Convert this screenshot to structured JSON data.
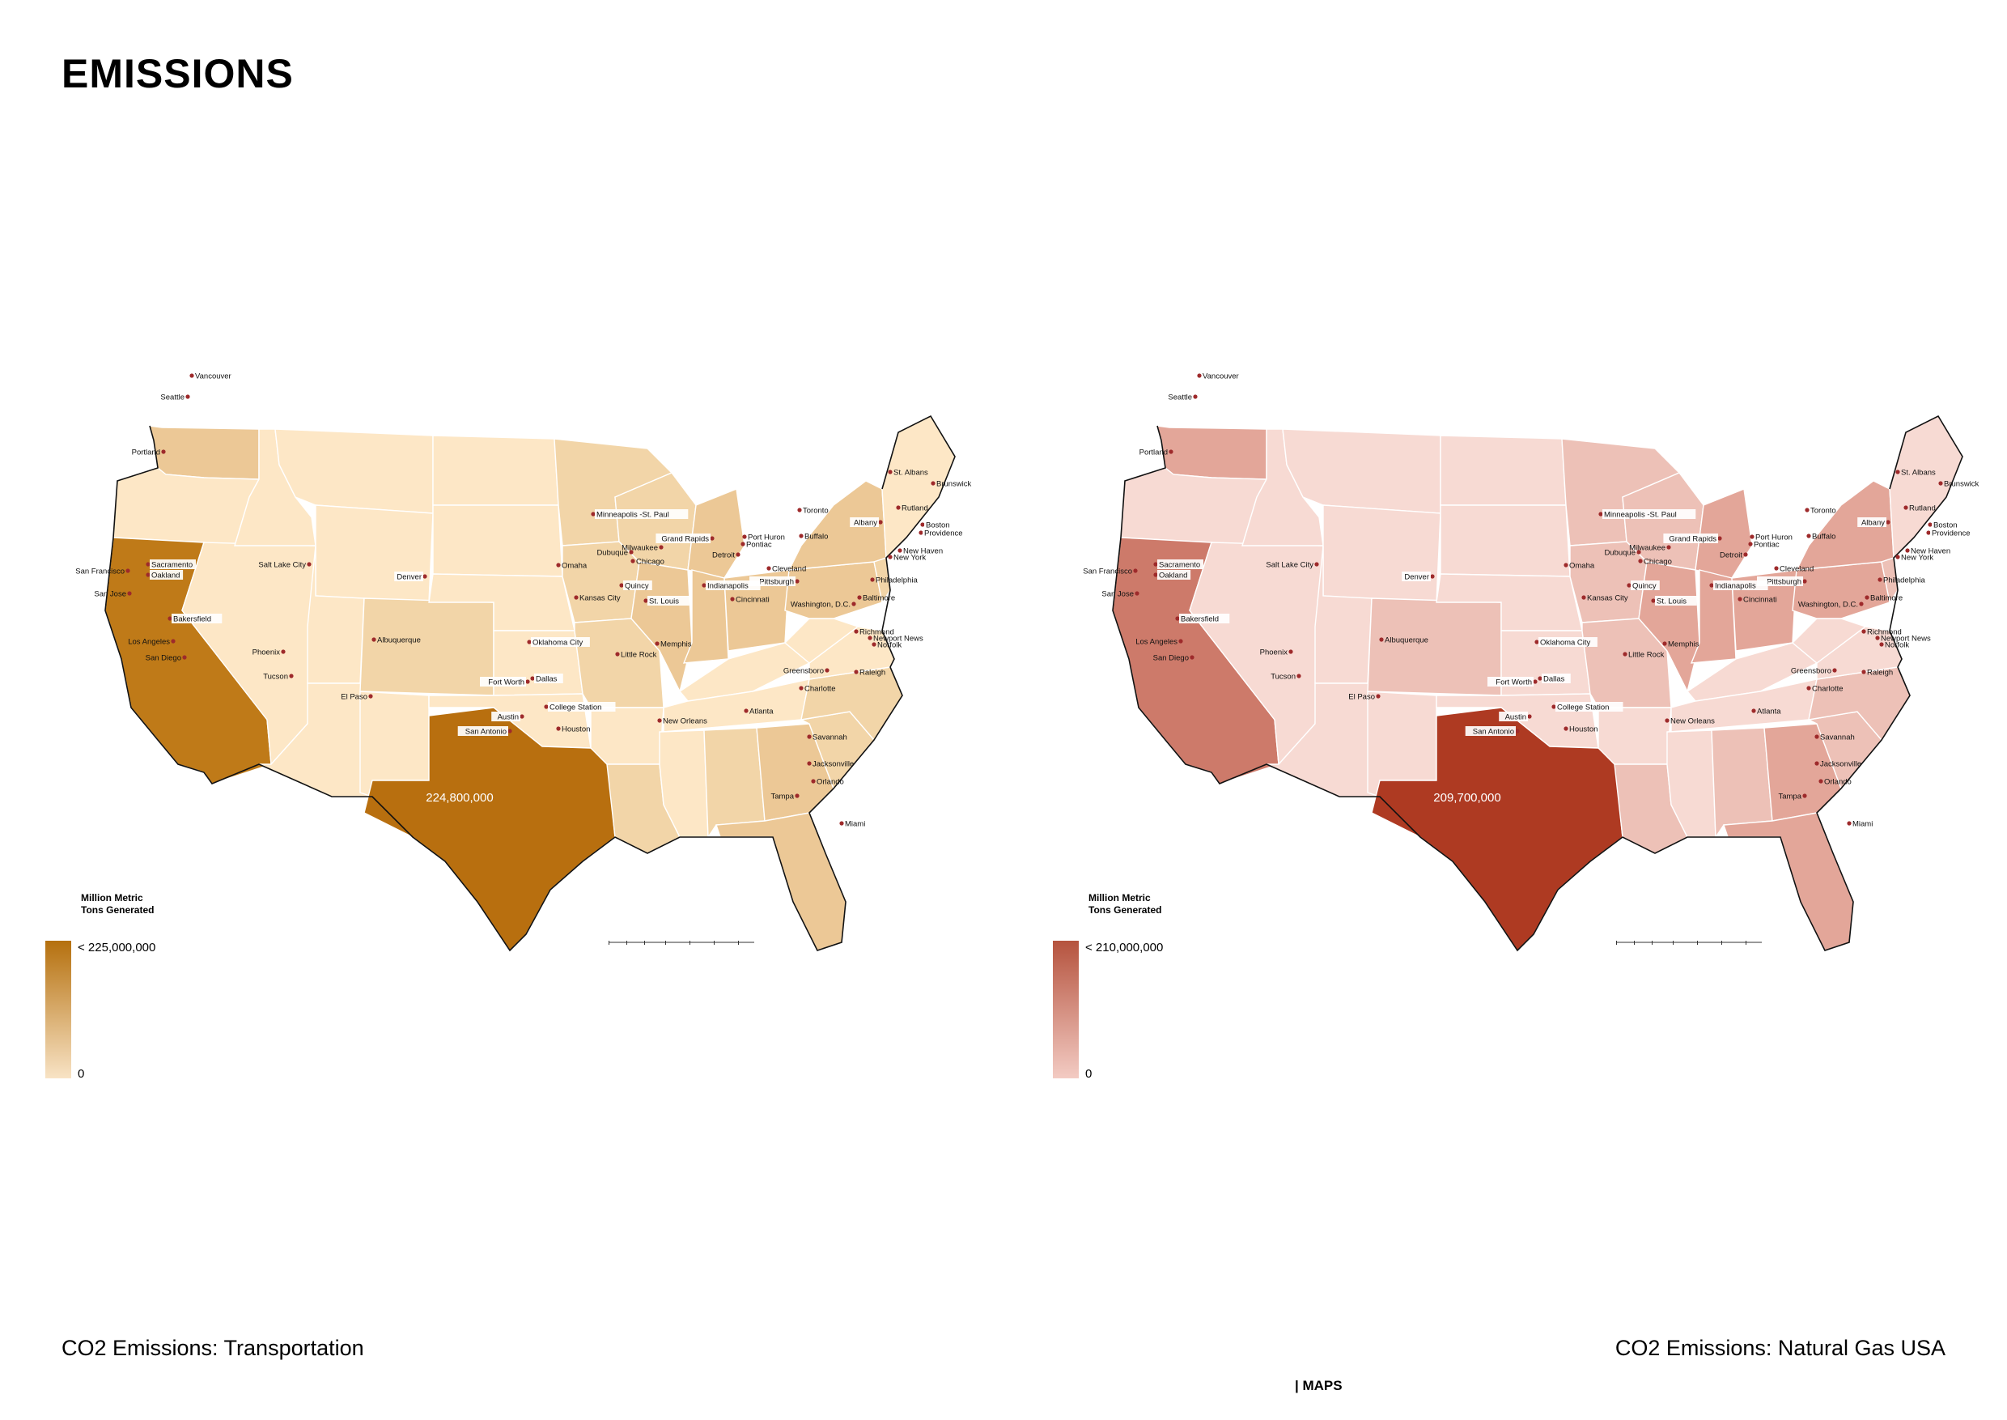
{
  "page": {
    "title": "EMISSIONS",
    "section_tag": "| MAPS"
  },
  "maps": [
    {
      "caption": "CO2 Emissions: Transportation",
      "legend_title_1": "Million Metric",
      "legend_title_2": "Tons Generated",
      "legend_max": "< 225,000,000",
      "legend_min": "0",
      "highlight_value": "224,800,000",
      "colors": {
        "low": "#f8e3c5",
        "high": "#b5700e",
        "texas": "#b86f0f",
        "california": "#bf7a18",
        "mid": "#ecc896",
        "mid2": "#f2d5a8",
        "base": "#fde7c6"
      }
    },
    {
      "caption": "CO2 Emissions: Natural Gas USA",
      "legend_title_1": "Million Metric",
      "legend_title_2": "Tons Generated",
      "legend_max": "< 210,000,000",
      "legend_min": "0",
      "highlight_value": "209,700,000",
      "colors": {
        "low": "#f3cbc3",
        "high": "#b5533e",
        "texas": "#ae3a22",
        "california": "#cd7a6a",
        "mid": "#e3a699",
        "mid2": "#edc1b7",
        "base": "#f7dad3"
      }
    }
  ],
  "cities": [
    "Vancouver",
    "Seattle",
    "Portland",
    "San Francisco",
    "Sacramento",
    "Oakland",
    "San Jose",
    "Bakersfield",
    "Los Angeles",
    "San Diego",
    "Phoenix",
    "Tucson",
    "El Paso",
    "Albuquerque",
    "Salt Lake City",
    "Denver",
    "Omaha",
    "Kansas City",
    "Oklahoma City",
    "Fort Worth",
    "Dallas",
    "College Station",
    "Austin",
    "San Antonio",
    "Houston",
    "Little Rock",
    "Memphis",
    "New Orleans",
    "St. Louis",
    "Quincy",
    "Dubuque",
    "Chicago",
    "Milwaukee",
    "Minneapolis -St. Paul",
    "Grand Rapids",
    "Port Huron",
    "Pontiac",
    "Detroit",
    "Cleveland",
    "Pittsburgh",
    "Toronto",
    "Buffalo",
    "Indianapolis",
    "Cincinnati",
    "Washington, D.C.",
    "Baltimore",
    "Philadelphia",
    "New York",
    "New Haven",
    "Providence",
    "Boston",
    "Rutland",
    "Albany",
    "St. Albans",
    "Brunswick",
    "Richmond",
    "Newport News",
    "Norfolk",
    "Greensboro",
    "Raleigh",
    "Charlotte",
    "Atlanta",
    "Savannah",
    "Jacksonville",
    "Orlando",
    "Tampa",
    "Miami"
  ]
}
